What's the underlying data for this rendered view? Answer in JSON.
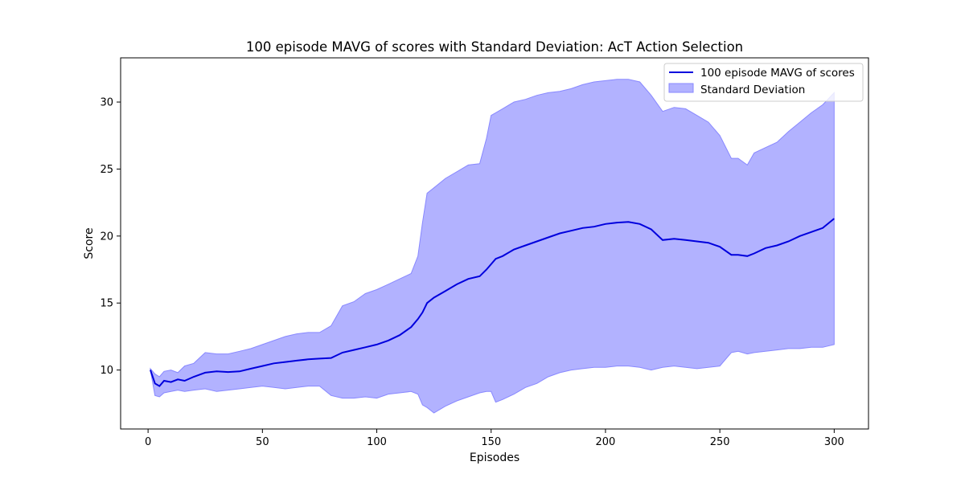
{
  "chart_data": {
    "type": "line",
    "title": "100 episode MAVG of scores with Standard Deviation: AcT Action Selection",
    "xlabel": "Episodes",
    "ylabel": "Score",
    "xlim": [
      -12,
      315
    ],
    "ylim": [
      5.6,
      33.3
    ],
    "xticks": [
      0,
      50,
      100,
      150,
      200,
      250,
      300
    ],
    "yticks": [
      10,
      15,
      20,
      25,
      30
    ],
    "grid": false,
    "legend_position": "top-right",
    "colors": {
      "line": "#0000dd",
      "band": "#8888ff"
    },
    "series": [
      {
        "name": "100 episode MAVG of scores",
        "x": [
          1,
          3,
          5,
          7,
          10,
          13,
          16,
          20,
          25,
          30,
          35,
          40,
          45,
          50,
          55,
          60,
          65,
          70,
          75,
          80,
          85,
          90,
          95,
          100,
          105,
          110,
          115,
          118,
          120,
          122,
          125,
          130,
          135,
          140,
          145,
          148,
          150,
          152,
          155,
          160,
          165,
          170,
          175,
          180,
          185,
          190,
          195,
          200,
          205,
          210,
          215,
          220,
          225,
          230,
          235,
          240,
          245,
          250,
          255,
          258,
          262,
          265,
          270,
          275,
          280,
          285,
          290,
          295,
          300
        ],
        "y": [
          10.0,
          9.0,
          8.8,
          9.2,
          9.1,
          9.3,
          9.2,
          9.5,
          9.8,
          9.9,
          9.85,
          9.9,
          10.1,
          10.3,
          10.5,
          10.6,
          10.7,
          10.8,
          10.85,
          10.9,
          11.3,
          11.5,
          11.7,
          11.9,
          12.2,
          12.6,
          13.2,
          13.8,
          14.3,
          15.0,
          15.4,
          15.9,
          16.4,
          16.8,
          17.0,
          17.5,
          17.9,
          18.3,
          18.5,
          19.0,
          19.3,
          19.6,
          19.9,
          20.2,
          20.4,
          20.6,
          20.7,
          20.9,
          21.0,
          21.05,
          20.9,
          20.5,
          19.7,
          19.8,
          19.7,
          19.6,
          19.5,
          19.2,
          18.6,
          18.6,
          18.5,
          18.7,
          19.1,
          19.3,
          19.6,
          20.0,
          20.3,
          20.6,
          21.3
        ]
      },
      {
        "name": "Standard Deviation",
        "x": [
          1,
          3,
          5,
          7,
          10,
          13,
          16,
          20,
          25,
          30,
          35,
          40,
          45,
          50,
          55,
          60,
          65,
          70,
          75,
          80,
          85,
          90,
          95,
          100,
          105,
          110,
          115,
          118,
          120,
          122,
          125,
          130,
          135,
          140,
          145,
          148,
          150,
          152,
          155,
          160,
          165,
          170,
          175,
          180,
          185,
          190,
          195,
          200,
          205,
          210,
          215,
          220,
          225,
          230,
          235,
          240,
          245,
          250,
          255,
          258,
          262,
          265,
          270,
          275,
          280,
          285,
          290,
          295,
          300
        ],
        "upper": [
          10.1,
          9.7,
          9.5,
          9.9,
          10.0,
          9.8,
          10.3,
          10.5,
          11.3,
          11.2,
          11.2,
          11.4,
          11.6,
          11.9,
          12.2,
          12.5,
          12.7,
          12.8,
          12.8,
          13.3,
          14.8,
          15.1,
          15.7,
          16.0,
          16.4,
          16.8,
          17.2,
          18.5,
          21.0,
          23.2,
          23.6,
          24.3,
          24.8,
          25.3,
          25.4,
          27.3,
          29.0,
          29.2,
          29.5,
          30.0,
          30.2,
          30.5,
          30.7,
          30.8,
          31.0,
          31.3,
          31.5,
          31.6,
          31.7,
          31.7,
          31.5,
          30.5,
          29.3,
          29.6,
          29.5,
          29.0,
          28.5,
          27.5,
          25.8,
          25.8,
          25.3,
          26.2,
          26.6,
          27.0,
          27.8,
          28.5,
          29.2,
          29.8,
          30.7
        ],
        "lower": [
          10.0,
          8.1,
          8.0,
          8.3,
          8.4,
          8.5,
          8.4,
          8.5,
          8.6,
          8.4,
          8.5,
          8.6,
          8.7,
          8.8,
          8.7,
          8.6,
          8.7,
          8.8,
          8.8,
          8.1,
          7.9,
          7.9,
          8.0,
          7.9,
          8.2,
          8.3,
          8.4,
          8.2,
          7.4,
          7.2,
          6.8,
          7.3,
          7.7,
          8.0,
          8.3,
          8.4,
          8.4,
          7.6,
          7.8,
          8.2,
          8.7,
          9.0,
          9.5,
          9.8,
          10.0,
          10.1,
          10.2,
          10.2,
          10.3,
          10.3,
          10.2,
          10.0,
          10.2,
          10.3,
          10.2,
          10.1,
          10.2,
          10.3,
          11.3,
          11.4,
          11.2,
          11.3,
          11.4,
          11.5,
          11.6,
          11.6,
          11.7,
          11.7,
          11.9
        ]
      }
    ]
  }
}
